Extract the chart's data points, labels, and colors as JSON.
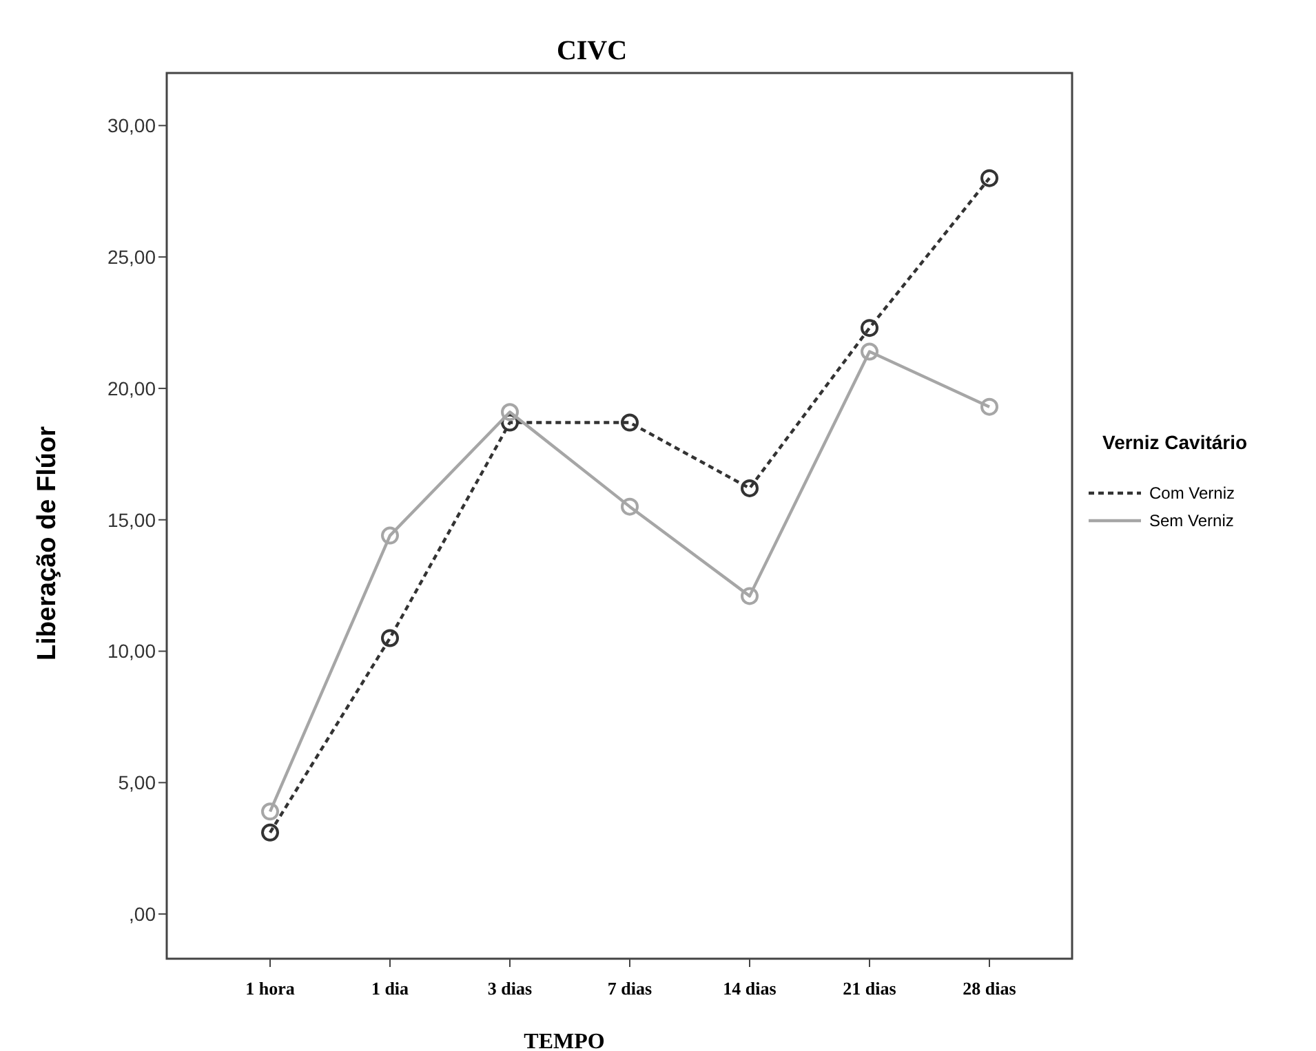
{
  "chart_data": {
    "type": "line",
    "title": "CIVC",
    "xlabel": "TEMPO",
    "ylabel": "Liberação de Flúor",
    "legend_title": "Verniz Cavitário",
    "legend": "right",
    "marker": "circle",
    "grid": false,
    "categories": [
      "1 hora",
      "1 dia",
      "3 dias",
      "7 dias",
      "14 dias",
      "21 dias",
      "28 dias"
    ],
    "ylim": [
      -1.7,
      32
    ],
    "yticks": [
      {
        "value": 0,
        "label": ",00"
      },
      {
        "value": 5,
        "label": "5,00"
      },
      {
        "value": 10,
        "label": "10,00"
      },
      {
        "value": 15,
        "label": "15,00"
      },
      {
        "value": 20,
        "label": "20,00"
      },
      {
        "value": 25,
        "label": "25,00"
      },
      {
        "value": 30,
        "label": "30,00"
      }
    ],
    "series": [
      {
        "name": "Com Verniz",
        "color": "#333333",
        "line_style": "dashed",
        "values": [
          3.1,
          10.5,
          18.7,
          18.7,
          16.2,
          22.3,
          28.0
        ]
      },
      {
        "name": "Sem Verniz",
        "color": "#a6a6a6",
        "line_style": "solid",
        "values": [
          3.9,
          14.4,
          19.1,
          15.5,
          12.1,
          21.4,
          19.3
        ]
      }
    ]
  }
}
